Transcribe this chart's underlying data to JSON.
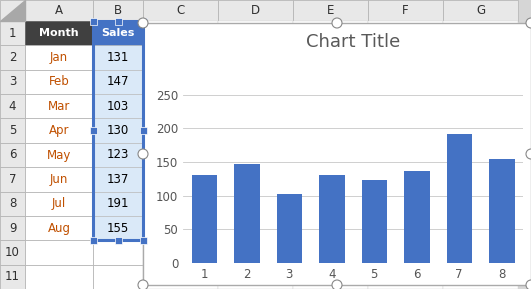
{
  "title": "Chart Title",
  "categories": [
    1,
    2,
    3,
    4,
    5,
    6,
    7,
    8
  ],
  "values": [
    131,
    147,
    103,
    130,
    123,
    137,
    191,
    155
  ],
  "bar_color": "#4472C4",
  "ylim": [
    0,
    300
  ],
  "yticks": [
    0,
    50,
    100,
    150,
    200,
    250
  ],
  "title_fontsize": 13,
  "title_color": "#595959",
  "tick_fontsize": 8.5,
  "grid_color": "#C8C8C8",
  "chart_bg": "#FFFFFF",
  "excel_bg": "#D6D6D6",
  "col_header_bg": "#E8E8E8",
  "row_header_bg": "#E8E8E8",
  "cell_bg": "#FFFFFF",
  "cell_selected_bg": "#DAE9F8",
  "months": [
    "Jan",
    "Feb",
    "Mar",
    "Apr",
    "May",
    "Jun",
    "Jul",
    "Aug"
  ],
  "sales": [
    131,
    147,
    103,
    130,
    123,
    137,
    191,
    155
  ],
  "col_names": [
    "A",
    "B",
    "C",
    "D",
    "E",
    "F",
    "G"
  ],
  "num_rows": 11,
  "month_text_color": "#C05000",
  "header_month_bg": "#404040",
  "header_sales_bg": "#4472C4",
  "selection_color": "#4472C4"
}
